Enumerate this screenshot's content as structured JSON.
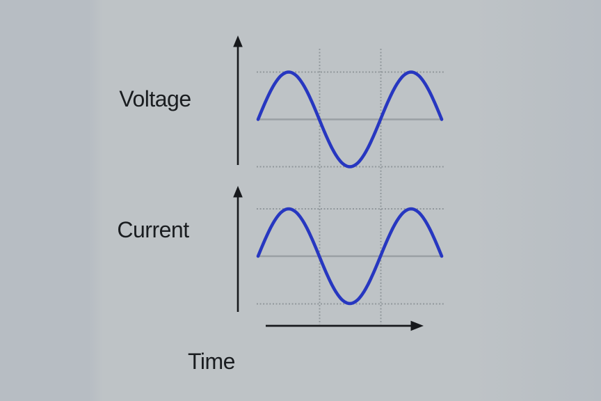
{
  "labels": {
    "voltage_axis": "Voltage",
    "current_axis": "Current",
    "time_axis": "Time"
  },
  "colors": {
    "background": "#bec3c6",
    "background_edge": "#b7bdc3",
    "wave_blue": "#2737c0",
    "axis_black": "#17191c",
    "zero_line_gray": "#9aa0a4",
    "grid_dot_gray": "#8d9498",
    "text_black": "#1a1d20"
  },
  "chart_data": [
    {
      "type": "line",
      "title": "",
      "ylabel": "Voltage",
      "xlabel": "Time",
      "series": [
        {
          "name": "Voltage",
          "waveform": "sine",
          "amplitude": 1,
          "phase_deg": 0,
          "cycles_shown": 1.5
        }
      ],
      "x_range_periods": [
        0,
        1.5
      ],
      "y_range": [
        -1,
        1
      ],
      "axis_tick_labels": "none",
      "grid": "dotted horizontal lines at peak (+1) and trough (-1); dotted vertical lines at 0.5 and 1.0 periods",
      "legend": "none"
    },
    {
      "type": "line",
      "title": "",
      "ylabel": "Current",
      "xlabel": "Time",
      "series": [
        {
          "name": "Current",
          "waveform": "sine",
          "amplitude": 1,
          "phase_deg": 0,
          "cycles_shown": 1.5
        }
      ],
      "x_range_periods": [
        0,
        1.5
      ],
      "y_range": [
        -1,
        1
      ],
      "axis_tick_labels": "none",
      "grid": "dotted horizontal lines at peak (+1) and trough (-1); dotted vertical lines at 0.5 and 1.0 periods",
      "legend": "none"
    }
  ]
}
